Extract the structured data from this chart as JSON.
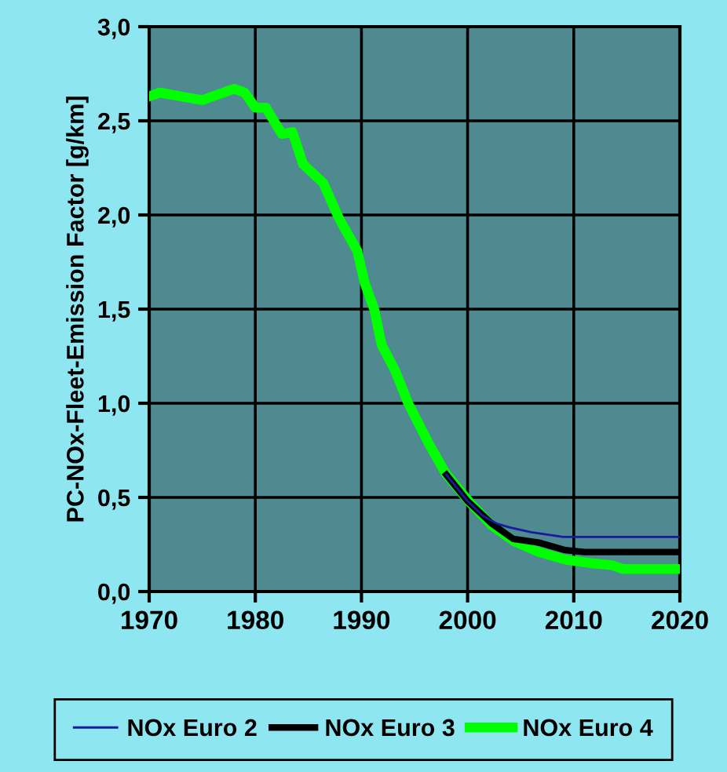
{
  "chart_data": {
    "type": "line",
    "ylabel": "PC-NOx-Fleet-Emission Factor [g/km]",
    "xlim": [
      1970,
      2020
    ],
    "xticks": [
      1970,
      1980,
      1990,
      2000,
      2010,
      2020
    ],
    "ylim": [
      0,
      3
    ],
    "yticks": [
      {
        "value": 0,
        "label": "0,0"
      },
      {
        "value": 0.5,
        "label": "0,5"
      },
      {
        "value": 1,
        "label": "1,0"
      },
      {
        "value": 1.5,
        "label": "1,5"
      },
      {
        "value": 2,
        "label": "2,0"
      },
      {
        "value": 2.5,
        "label": "2,5"
      },
      {
        "value": 3,
        "label": "3,0"
      }
    ],
    "grid": true,
    "legend": "bottom",
    "marker": "none",
    "line_style": "solid",
    "series": [
      {
        "name": "NOx Euro 2",
        "color": "#1a1a9c",
        "x": [
          1998,
          2000,
          2001.5,
          2002.8,
          2004,
          2006,
          2009,
          2020
        ],
        "values": [
          0.62,
          0.48,
          0.4,
          0.36,
          0.34,
          0.315,
          0.29,
          0.29
        ]
      },
      {
        "name": "NOx Euro 3",
        "color": "#000000",
        "x": [
          1998,
          2000,
          2002.3,
          2004.3,
          2006.7,
          2009.2,
          2011,
          2020
        ],
        "values": [
          0.62,
          0.48,
          0.36,
          0.28,
          0.26,
          0.22,
          0.21,
          0.21
        ]
      },
      {
        "name": "NOx Euro 4",
        "color": "#00ff00",
        "x": [
          1970,
          1971,
          1973,
          1975,
          1978,
          1979,
          1980,
          1981,
          1982.5,
          1983.5,
          1984.5,
          1986.4,
          1987.9,
          1989.6,
          1990.3,
          1991.2,
          1991.9,
          1993.2,
          1994.4,
          1996.4,
          1997.9,
          2000.1,
          2002.3,
          2004.3,
          2006.7,
          2009.2,
          2011.7,
          2013.6,
          2014.6,
          2020
        ],
        "values": [
          2.63,
          2.65,
          2.63,
          2.61,
          2.67,
          2.65,
          2.57,
          2.57,
          2.43,
          2.44,
          2.27,
          2.17,
          1.98,
          1.81,
          1.64,
          1.5,
          1.31,
          1.17,
          1.0,
          0.78,
          0.63,
          0.48,
          0.35,
          0.27,
          0.21,
          0.17,
          0.15,
          0.14,
          0.12,
          0.12
        ]
      }
    ]
  }
}
